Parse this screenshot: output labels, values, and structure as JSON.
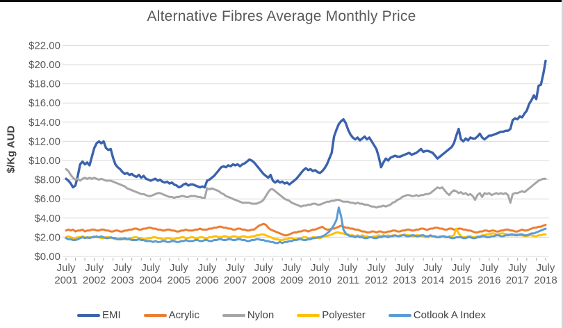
{
  "title": "Alternative Fibres Average Monthly Price",
  "y_axis": {
    "label": "$/Kg AUD",
    "ticks_top_to_bottom": [
      "$22.00",
      "$20.00",
      "$18.00",
      "$16.00",
      "$14.00",
      "$12.00",
      "$10.00",
      "$8.00",
      "$6.00",
      "$4.00",
      "$2.00",
      "$0.00"
    ]
  },
  "x_axis": {
    "month_label": "July",
    "years": [
      "2001",
      "2002",
      "2003",
      "2004",
      "2005",
      "2006",
      "2007",
      "2008",
      "2009",
      "2010",
      "2011",
      "2012",
      "2013",
      "2014",
      "2015",
      "2016",
      "2017",
      "2018"
    ]
  },
  "legend": [
    "EMI",
    "Acrylic",
    "Nylon",
    "Polyester",
    "Cotlook A Index"
  ],
  "colors": {
    "emi": "#3A62AD",
    "acrylic": "#ED7D31",
    "nylon": "#A5A5A5",
    "polyester": "#FFC000",
    "cotlook": "#5B9BD5",
    "gridline": "#D9D9D9",
    "tick": "#A6A6A6",
    "axis_text": "#595959"
  },
  "chart_data": {
    "type": "line",
    "title": "Alternative Fibres Average Monthly Price",
    "xlabel": "",
    "ylabel": "$/Kg AUD",
    "ylim": [
      0,
      22
    ],
    "ytick_step": 2,
    "grid": true,
    "legend_position": "bottom",
    "x_unit": "months since July 2001 (monthly data, July 2001 - July 2018)",
    "x_tick_labels": [
      "July 2001",
      "July 2002",
      "July 2003",
      "July 2004",
      "July 2005",
      "July 2006",
      "July 2007",
      "July 2008",
      "July 2009",
      "July 2010",
      "July 2011",
      "July 2012",
      "July 2013",
      "July 2014",
      "July 2015",
      "July 2016",
      "July 2017",
      "July 2018"
    ],
    "series": [
      {
        "name": "EMI",
        "color": "#3A62AD",
        "values_monthly": [
          8.1,
          7.9,
          7.6,
          7.2,
          7.4,
          8.4,
          9.6,
          9.9,
          9.6,
          9.8,
          9.5,
          10.4,
          11.3,
          11.8,
          12.0,
          11.8,
          12.0,
          11.3,
          11.1,
          11.2,
          10.3,
          9.6,
          9.3,
          9.1,
          8.8,
          8.6,
          8.7,
          8.5,
          8.6,
          8.4,
          8.3,
          8.5,
          8.2,
          8.4,
          8.1,
          8.0,
          7.9,
          8.0,
          8.1,
          7.9,
          8.0,
          7.8,
          7.7,
          7.8,
          7.6,
          7.7,
          7.5,
          7.4,
          7.2,
          7.3,
          7.5,
          7.6,
          7.4,
          7.5,
          7.5,
          7.4,
          7.3,
          7.2,
          7.3,
          7.2,
          7.9,
          8.0,
          8.2,
          8.4,
          8.7,
          9.0,
          9.3,
          9.4,
          9.3,
          9.5,
          9.4,
          9.6,
          9.5,
          9.6,
          9.4,
          9.6,
          9.7,
          9.9,
          10.1,
          10.0,
          9.8,
          9.5,
          9.2,
          8.9,
          8.6,
          8.4,
          8.2,
          8.5,
          7.9,
          7.7,
          7.9,
          7.7,
          7.8,
          7.6,
          7.7,
          7.5,
          7.7,
          7.9,
          8.1,
          8.4,
          8.7,
          9.0,
          9.2,
          9.0,
          9.1,
          8.9,
          9.0,
          8.8,
          8.7,
          8.9,
          9.2,
          9.6,
          10.2,
          10.8,
          12.5,
          13.2,
          13.8,
          14.1,
          14.3,
          13.9,
          13.2,
          12.7,
          12.4,
          12.2,
          12.4,
          12.1,
          12.3,
          12.5,
          12.2,
          12.4,
          12.0,
          11.6,
          11.2,
          10.4,
          9.3,
          9.8,
          10.2,
          10.0,
          10.3,
          10.4,
          10.5,
          10.4,
          10.4,
          10.5,
          10.6,
          10.7,
          10.8,
          10.6,
          10.7,
          10.8,
          11.0,
          11.2,
          10.9,
          11.0,
          11.0,
          10.9,
          10.8,
          10.5,
          10.2,
          10.4,
          10.6,
          10.8,
          11.0,
          11.2,
          11.4,
          11.8,
          12.6,
          13.3,
          12.2,
          12.0,
          12.3,
          12.1,
          12.4,
          12.3,
          12.3,
          12.5,
          12.8,
          12.4,
          12.2,
          12.4,
          12.6,
          12.6,
          12.7,
          12.8,
          12.9,
          13.0,
          13.0,
          13.1,
          13.1,
          13.3,
          14.2,
          14.4,
          14.3,
          14.6,
          14.5,
          14.9,
          15.2,
          15.9,
          16.3,
          16.8,
          16.4,
          17.8,
          17.9,
          19.0,
          20.4
        ]
      },
      {
        "name": "Acrylic",
        "color": "#ED7D31",
        "values_monthly": [
          2.7,
          2.8,
          2.7,
          2.8,
          2.6,
          2.7,
          2.7,
          2.8,
          2.6,
          2.7,
          2.7,
          2.8,
          2.8,
          2.7,
          2.7,
          2.8,
          2.8,
          2.7,
          2.7,
          2.6,
          2.6,
          2.7,
          2.7,
          2.6,
          2.6,
          2.7,
          2.7,
          2.8,
          2.8,
          2.9,
          2.9,
          2.8,
          2.8,
          2.9,
          2.9,
          3.0,
          3.0,
          2.9,
          2.9,
          2.8,
          2.8,
          2.7,
          2.7,
          2.8,
          2.8,
          2.7,
          2.7,
          2.6,
          2.6,
          2.7,
          2.7,
          2.8,
          2.7,
          2.7,
          2.7,
          2.8,
          2.8,
          2.9,
          2.8,
          2.8,
          2.8,
          2.9,
          2.9,
          3.0,
          3.0,
          3.1,
          3.1,
          3.0,
          3.0,
          2.9,
          2.9,
          2.8,
          2.8,
          2.9,
          2.9,
          2.8,
          2.8,
          2.7,
          2.7,
          2.8,
          2.8,
          3.0,
          3.2,
          3.3,
          3.4,
          3.3,
          3.0,
          2.8,
          2.7,
          2.6,
          2.5,
          2.4,
          2.3,
          2.2,
          2.2,
          2.3,
          2.4,
          2.5,
          2.5,
          2.6,
          2.6,
          2.7,
          2.7,
          2.6,
          2.7,
          2.8,
          2.8,
          2.9,
          3.0,
          3.1,
          2.9,
          2.8,
          2.8,
          2.9,
          2.9,
          3.0,
          3.1,
          3.2,
          3.1,
          3.0,
          3.0,
          2.9,
          2.9,
          2.8,
          2.8,
          2.7,
          2.6,
          2.6,
          2.5,
          2.5,
          2.6,
          2.6,
          2.5,
          2.6,
          2.6,
          2.5,
          2.5,
          2.6,
          2.6,
          2.7,
          2.7,
          2.6,
          2.6,
          2.7,
          2.7,
          2.8,
          2.8,
          2.7,
          2.7,
          2.8,
          2.8,
          2.9,
          2.9,
          2.8,
          2.8,
          2.9,
          2.9,
          3.0,
          3.0,
          2.9,
          2.9,
          2.8,
          2.8,
          2.9,
          2.9,
          2.8,
          2.8,
          2.9,
          2.9,
          2.8,
          2.8,
          2.7,
          2.7,
          2.6,
          2.5,
          2.5,
          2.6,
          2.6,
          2.7,
          2.7,
          2.6,
          2.7,
          2.7,
          2.6,
          2.6,
          2.7,
          2.7,
          2.8,
          2.8,
          2.7,
          2.7,
          2.6,
          2.6,
          2.7,
          2.8,
          2.7,
          2.7,
          2.8,
          2.9,
          3.0,
          3.0,
          3.1,
          3.1,
          3.2,
          3.3
        ]
      },
      {
        "name": "Nylon",
        "color": "#A5A5A5",
        "values_monthly": [
          9.1,
          8.9,
          8.5,
          8.2,
          8.0,
          8.1,
          7.9,
          8.1,
          8.2,
          8.1,
          8.2,
          8.1,
          8.2,
          8.1,
          8.0,
          8.1,
          8.0,
          7.9,
          7.9,
          7.9,
          7.8,
          7.7,
          7.6,
          7.5,
          7.4,
          7.3,
          7.1,
          7.0,
          6.9,
          6.8,
          6.7,
          6.6,
          6.5,
          6.5,
          6.4,
          6.3,
          6.3,
          6.4,
          6.5,
          6.6,
          6.6,
          6.5,
          6.4,
          6.3,
          6.2,
          6.2,
          6.1,
          6.2,
          6.2,
          6.3,
          6.3,
          6.2,
          6.2,
          6.3,
          6.3,
          6.3,
          6.2,
          6.2,
          6.1,
          6.1,
          7.1,
          7.0,
          7.1,
          7.0,
          6.9,
          6.8,
          6.6,
          6.5,
          6.3,
          6.2,
          6.1,
          6.0,
          5.9,
          5.8,
          5.7,
          5.6,
          5.6,
          5.6,
          5.6,
          5.5,
          5.5,
          5.5,
          5.6,
          5.7,
          5.9,
          6.3,
          6.7,
          7.0,
          7.0,
          6.8,
          6.6,
          6.4,
          6.2,
          6.0,
          5.9,
          5.8,
          5.6,
          5.5,
          5.4,
          5.3,
          5.2,
          5.3,
          5.3,
          5.4,
          5.4,
          5.5,
          5.5,
          5.4,
          5.4,
          5.5,
          5.6,
          5.7,
          5.7,
          5.8,
          5.8,
          5.9,
          5.9,
          5.8,
          5.7,
          5.7,
          5.7,
          5.6,
          5.6,
          5.5,
          5.6,
          5.5,
          5.5,
          5.4,
          5.4,
          5.3,
          5.2,
          5.2,
          5.1,
          5.2,
          5.2,
          5.3,
          5.2,
          5.3,
          5.4,
          5.6,
          5.7,
          5.9,
          6.0,
          6.2,
          6.3,
          6.4,
          6.4,
          6.3,
          6.3,
          6.4,
          6.3,
          6.4,
          6.4,
          6.5,
          6.5,
          6.6,
          6.8,
          7.0,
          7.2,
          7.1,
          7.2,
          6.9,
          6.6,
          6.4,
          6.7,
          6.9,
          6.8,
          6.6,
          6.7,
          6.5,
          6.6,
          6.4,
          6.5,
          6.3,
          5.9,
          6.4,
          6.6,
          6.2,
          6.6,
          6.5,
          6.6,
          6.4,
          6.5,
          6.6,
          6.5,
          6.6,
          6.5,
          6.6,
          6.4,
          5.6,
          6.5,
          6.6,
          6.6,
          6.7,
          6.8,
          6.7,
          6.9,
          7.1,
          7.3,
          7.5,
          7.7,
          7.9,
          8.0,
          8.1,
          8.1
        ]
      },
      {
        "name": "Polyester",
        "color": "#FFC000",
        "values_monthly": [
          2.0,
          2.1,
          2.0,
          1.9,
          1.9,
          2.0,
          2.0,
          2.1,
          2.0,
          1.9,
          2.0,
          2.0,
          2.1,
          2.0,
          2.0,
          1.9,
          1.9,
          2.0,
          2.0,
          1.9,
          1.9,
          1.8,
          1.8,
          1.9,
          1.9,
          1.8,
          1.8,
          1.9,
          1.9,
          2.0,
          2.0,
          1.9,
          1.9,
          1.8,
          1.8,
          1.9,
          1.9,
          2.0,
          2.0,
          1.9,
          1.9,
          1.8,
          1.8,
          1.9,
          1.9,
          1.8,
          1.8,
          1.9,
          1.9,
          2.0,
          2.0,
          1.9,
          1.9,
          2.0,
          2.0,
          1.9,
          1.9,
          2.0,
          2.0,
          1.9,
          1.9,
          2.0,
          2.0,
          2.1,
          2.1,
          2.0,
          2.0,
          2.1,
          2.1,
          2.0,
          2.0,
          2.1,
          2.1,
          2.0,
          2.0,
          2.1,
          2.1,
          2.0,
          2.0,
          2.1,
          2.1,
          2.2,
          2.2,
          2.3,
          2.3,
          2.2,
          2.1,
          2.0,
          1.9,
          1.8,
          1.8,
          1.7,
          1.7,
          1.8,
          1.8,
          1.9,
          1.9,
          1.8,
          1.8,
          1.9,
          1.9,
          2.0,
          2.0,
          1.9,
          1.9,
          2.0,
          2.0,
          1.9,
          1.9,
          2.0,
          2.1,
          2.1,
          2.2,
          2.3,
          2.4,
          2.5,
          2.5,
          2.4,
          2.4,
          2.3,
          2.3,
          2.2,
          2.2,
          2.1,
          2.2,
          2.1,
          2.2,
          2.1,
          2.1,
          2.0,
          2.0,
          2.1,
          2.1,
          2.2,
          2.1,
          2.2,
          2.1,
          2.2,
          2.1,
          2.2,
          2.2,
          2.1,
          2.2,
          2.2,
          2.3,
          2.2,
          2.2,
          2.1,
          2.1,
          2.2,
          2.2,
          2.1,
          2.1,
          2.0,
          2.0,
          2.1,
          2.1,
          2.0,
          2.0,
          2.1,
          2.1,
          2.0,
          2.0,
          2.1,
          2.1,
          2.2,
          2.9,
          2.4,
          2.1,
          2.0,
          2.0,
          2.1,
          2.1,
          2.0,
          2.0,
          2.1,
          2.1,
          2.2,
          2.2,
          2.3,
          2.3,
          2.4,
          2.4,
          2.3,
          2.3,
          2.4,
          2.4,
          2.3,
          2.3,
          2.2,
          2.2,
          2.3,
          2.3,
          2.2,
          2.2,
          2.1,
          2.1,
          2.2,
          2.2,
          2.1,
          2.1,
          2.2,
          2.2,
          2.3,
          2.3
        ]
      },
      {
        "name": "Cotlook A Index",
        "color": "#5B9BD5",
        "values_monthly": [
          1.9,
          1.8,
          1.8,
          1.7,
          1.7,
          1.8,
          1.9,
          2.0,
          1.9,
          2.0,
          1.9,
          2.0,
          2.0,
          2.1,
          2.0,
          2.1,
          2.0,
          1.9,
          1.9,
          2.0,
          1.9,
          1.9,
          1.8,
          1.8,
          1.8,
          1.9,
          1.8,
          1.8,
          1.7,
          1.7,
          1.7,
          1.8,
          1.7,
          1.7,
          1.6,
          1.6,
          1.6,
          1.5,
          1.6,
          1.5,
          1.5,
          1.6,
          1.6,
          1.5,
          1.5,
          1.6,
          1.6,
          1.5,
          1.5,
          1.6,
          1.6,
          1.7,
          1.6,
          1.6,
          1.6,
          1.7,
          1.7,
          1.6,
          1.6,
          1.7,
          1.7,
          1.6,
          1.6,
          1.7,
          1.7,
          1.8,
          1.8,
          1.7,
          1.7,
          1.8,
          1.8,
          1.7,
          1.7,
          1.8,
          1.8,
          1.7,
          1.7,
          1.6,
          1.6,
          1.7,
          1.7,
          1.8,
          1.8,
          1.7,
          1.7,
          1.6,
          1.6,
          1.5,
          1.5,
          1.4,
          1.4,
          1.5,
          1.4,
          1.5,
          1.5,
          1.6,
          1.6,
          1.7,
          1.7,
          1.8,
          1.8,
          1.7,
          1.7,
          1.8,
          1.8,
          1.9,
          1.9,
          2.0,
          2.0,
          2.1,
          2.2,
          2.4,
          2.6,
          2.9,
          3.3,
          3.8,
          5.1,
          4.2,
          2.8,
          2.4,
          2.2,
          2.1,
          2.1,
          2.0,
          2.1,
          2.0,
          2.0,
          1.9,
          1.9,
          2.0,
          2.0,
          1.9,
          1.9,
          2.0,
          2.0,
          2.1,
          2.1,
          2.0,
          2.1,
          2.1,
          2.2,
          2.1,
          2.1,
          2.2,
          2.2,
          2.1,
          2.1,
          2.2,
          2.2,
          2.1,
          2.1,
          2.2,
          2.2,
          2.1,
          2.1,
          2.2,
          2.1,
          2.1,
          2.0,
          2.0,
          2.1,
          2.1,
          2.0,
          2.0,
          1.9,
          1.9,
          2.0,
          2.0,
          2.0,
          1.9,
          1.9,
          2.0,
          2.0,
          1.9,
          1.9,
          2.0,
          2.0,
          2.1,
          2.1,
          2.0,
          2.0,
          2.1,
          2.1,
          2.2,
          2.2,
          2.1,
          2.1,
          2.2,
          2.2,
          2.3,
          2.3,
          2.2,
          2.2,
          2.3,
          2.3,
          2.2,
          2.2,
          2.3,
          2.4,
          2.4,
          2.5,
          2.6,
          2.7,
          2.8,
          2.9
        ]
      }
    ]
  }
}
